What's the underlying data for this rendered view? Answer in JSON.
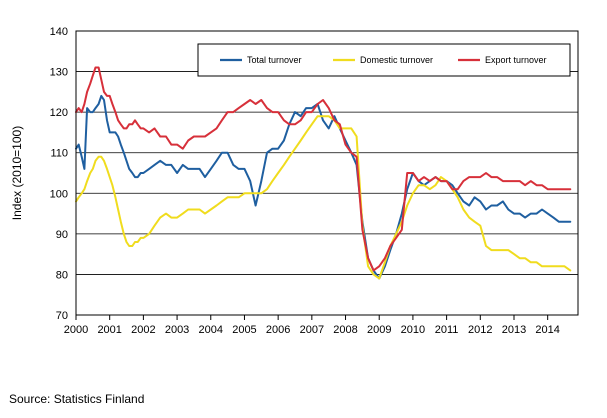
{
  "chart_data": {
    "type": "line",
    "title": "",
    "xlabel": "",
    "ylabel": "Index (2010=100)",
    "ylim": [
      70,
      140
    ],
    "yticks": [
      70,
      80,
      90,
      100,
      110,
      120,
      130,
      140
    ],
    "xlim": [
      2000,
      2014.9
    ],
    "xticks": [
      "2000",
      "2001",
      "2002",
      "2003",
      "2004",
      "2005",
      "2006",
      "2007",
      "2008",
      "2009",
      "2010",
      "2011",
      "2012",
      "2013",
      "2014"
    ],
    "grid": "horizontal",
    "legend_position": "top-right",
    "series": [
      {
        "name": "Total turnover",
        "color": "#1f5fa0",
        "x": [
          2000.0,
          2000.08,
          2000.17,
          2000.25,
          2000.33,
          2000.42,
          2000.5,
          2000.58,
          2000.67,
          2000.75,
          2000.83,
          2000.92,
          2001.0,
          2001.08,
          2001.17,
          2001.25,
          2001.33,
          2001.42,
          2001.5,
          2001.58,
          2001.67,
          2001.75,
          2001.83,
          2001.92,
          2002.0,
          2002.17,
          2002.33,
          2002.5,
          2002.67,
          2002.83,
          2003.0,
          2003.17,
          2003.33,
          2003.5,
          2003.67,
          2003.83,
          2004.0,
          2004.17,
          2004.33,
          2004.5,
          2004.67,
          2004.83,
          2005.0,
          2005.17,
          2005.33,
          2005.5,
          2005.67,
          2005.83,
          2006.0,
          2006.17,
          2006.33,
          2006.5,
          2006.67,
          2006.83,
          2007.0,
          2007.17,
          2007.33,
          2007.5,
          2007.67,
          2007.83,
          2008.0,
          2008.17,
          2008.33,
          2008.5,
          2008.67,
          2008.83,
          2009.0,
          2009.17,
          2009.33,
          2009.5,
          2009.67,
          2009.83,
          2010.0,
          2010.17,
          2010.33,
          2010.5,
          2010.67,
          2010.83,
          2011.0,
          2011.17,
          2011.33,
          2011.5,
          2011.67,
          2011.83,
          2012.0,
          2012.17,
          2012.33,
          2012.5,
          2012.67,
          2012.83,
          2013.0,
          2013.17,
          2013.33,
          2013.5,
          2013.67,
          2013.83,
          2014.0,
          2014.17,
          2014.33,
          2014.5,
          2014.67
        ],
        "y": [
          111,
          112,
          109,
          106,
          121,
          120,
          120,
          121,
          122,
          124,
          123,
          118,
          115,
          115,
          115,
          114,
          112,
          110,
          108,
          106,
          105,
          104,
          104,
          105,
          105,
          106,
          107,
          108,
          107,
          107,
          105,
          107,
          106,
          106,
          106,
          104,
          106,
          108,
          110,
          110,
          107,
          106,
          106,
          103,
          97,
          103,
          110,
          111,
          111,
          113,
          117,
          120,
          119,
          121,
          121,
          122,
          118,
          116,
          119,
          116,
          113,
          110,
          107,
          93,
          84,
          81,
          79,
          82,
          86,
          90,
          95,
          101,
          105,
          103,
          102,
          103,
          104,
          103,
          103,
          102,
          100,
          98,
          97,
          99,
          98,
          96,
          97,
          97,
          98,
          96,
          95,
          95,
          94,
          95,
          95,
          96,
          95,
          94,
          93,
          93,
          93
        ]
      },
      {
        "name": "Domestic turnover",
        "color": "#f0dc1e",
        "x": [
          2000.0,
          2000.08,
          2000.17,
          2000.25,
          2000.33,
          2000.42,
          2000.5,
          2000.58,
          2000.67,
          2000.75,
          2000.83,
          2000.92,
          2001.0,
          2001.08,
          2001.17,
          2001.25,
          2001.33,
          2001.42,
          2001.5,
          2001.58,
          2001.67,
          2001.75,
          2001.83,
          2001.92,
          2002.0,
          2002.17,
          2002.33,
          2002.5,
          2002.67,
          2002.83,
          2003.0,
          2003.17,
          2003.33,
          2003.5,
          2003.67,
          2003.83,
          2004.0,
          2004.17,
          2004.33,
          2004.5,
          2004.67,
          2004.83,
          2005.0,
          2005.17,
          2005.33,
          2005.5,
          2005.67,
          2005.83,
          2006.0,
          2006.17,
          2006.33,
          2006.5,
          2006.67,
          2006.83,
          2007.0,
          2007.17,
          2007.33,
          2007.5,
          2007.67,
          2007.83,
          2008.0,
          2008.17,
          2008.33,
          2008.5,
          2008.67,
          2008.83,
          2009.0,
          2009.17,
          2009.33,
          2009.5,
          2009.67,
          2009.83,
          2010.0,
          2010.17,
          2010.33,
          2010.5,
          2010.67,
          2010.83,
          2011.0,
          2011.17,
          2011.33,
          2011.5,
          2011.67,
          2011.83,
          2012.0,
          2012.17,
          2012.33,
          2012.5,
          2012.67,
          2012.83,
          2013.0,
          2013.17,
          2013.33,
          2013.5,
          2013.67,
          2013.83,
          2014.0,
          2014.17,
          2014.33,
          2014.5,
          2014.67
        ],
        "y": [
          98,
          99,
          100,
          101,
          103,
          105,
          106,
          108,
          109,
          109,
          108,
          106,
          104,
          102,
          99,
          96,
          93,
          90,
          88,
          87,
          87,
          88,
          88,
          89,
          89,
          90,
          92,
          94,
          95,
          94,
          94,
          95,
          96,
          96,
          96,
          95,
          96,
          97,
          98,
          99,
          99,
          99,
          100,
          100,
          100,
          100,
          101,
          103,
          105,
          107,
          109,
          111,
          113,
          115,
          117,
          119,
          119,
          119,
          118,
          116,
          116,
          116,
          114,
          92,
          82,
          80,
          79,
          83,
          87,
          90,
          93,
          97,
          100,
          102,
          102,
          101,
          102,
          104,
          103,
          101,
          99,
          96,
          94,
          93,
          92,
          87,
          86,
          86,
          86,
          86,
          85,
          84,
          84,
          83,
          83,
          82,
          82,
          82,
          82,
          82,
          81
        ]
      },
      {
        "name": "Export turnover",
        "color": "#d7303a",
        "x": [
          2000.0,
          2000.08,
          2000.17,
          2000.25,
          2000.33,
          2000.42,
          2000.5,
          2000.58,
          2000.67,
          2000.75,
          2000.83,
          2000.92,
          2001.0,
          2001.08,
          2001.17,
          2001.25,
          2001.33,
          2001.42,
          2001.5,
          2001.58,
          2001.67,
          2001.75,
          2001.83,
          2001.92,
          2002.0,
          2002.17,
          2002.33,
          2002.5,
          2002.67,
          2002.83,
          2003.0,
          2003.17,
          2003.33,
          2003.5,
          2003.67,
          2003.83,
          2004.0,
          2004.17,
          2004.33,
          2004.5,
          2004.67,
          2004.83,
          2005.0,
          2005.17,
          2005.33,
          2005.5,
          2005.67,
          2005.83,
          2006.0,
          2006.17,
          2006.33,
          2006.5,
          2006.67,
          2006.83,
          2007.0,
          2007.17,
          2007.33,
          2007.5,
          2007.67,
          2007.83,
          2008.0,
          2008.17,
          2008.33,
          2008.5,
          2008.67,
          2008.83,
          2009.0,
          2009.17,
          2009.33,
          2009.5,
          2009.67,
          2009.83,
          2010.0,
          2010.17,
          2010.33,
          2010.5,
          2010.67,
          2010.83,
          2011.0,
          2011.17,
          2011.33,
          2011.5,
          2011.67,
          2011.83,
          2012.0,
          2012.17,
          2012.33,
          2012.5,
          2012.67,
          2012.83,
          2013.0,
          2013.17,
          2013.33,
          2013.5,
          2013.67,
          2013.83,
          2014.0,
          2014.17,
          2014.33,
          2014.5,
          2014.67
        ],
        "y": [
          120,
          121,
          120,
          122,
          125,
          127,
          129,
          131,
          131,
          128,
          125,
          124,
          124,
          122,
          120,
          118,
          117,
          116,
          116,
          117,
          117,
          118,
          117,
          116,
          116,
          115,
          116,
          114,
          114,
          112,
          112,
          111,
          113,
          114,
          114,
          114,
          115,
          116,
          118,
          120,
          120,
          121,
          122,
          123,
          122,
          123,
          121,
          120,
          120,
          118,
          117,
          117,
          118,
          120,
          120,
          122,
          123,
          121,
          118,
          117,
          112,
          110,
          109,
          91,
          84,
          81,
          82,
          84,
          87,
          89,
          91,
          105,
          105,
          103,
          104,
          103,
          104,
          103,
          103,
          101,
          101,
          103,
          104,
          104,
          104,
          105,
          104,
          104,
          103,
          103,
          103,
          103,
          102,
          103,
          102,
          102,
          101,
          101,
          101,
          101,
          101
        ]
      }
    ]
  },
  "source": "Source: Statistics Finland"
}
